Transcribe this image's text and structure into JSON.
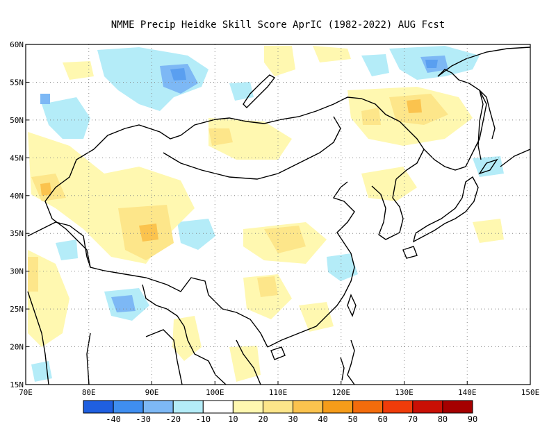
{
  "title": "NMME Precip Heidke Skill Score AprIC (1982-2022) AUG Fcst",
  "map": {
    "lon_range": [
      70,
      150
    ],
    "lat_range": [
      15,
      60
    ],
    "x_ticks": [
      "70E",
      "80E",
      "90E",
      "100E",
      "110E",
      "120E",
      "130E",
      "140E",
      "150E"
    ],
    "y_ticks": [
      "60N",
      "55N",
      "50N",
      "45N",
      "40N",
      "35N",
      "30N",
      "25N",
      "20N",
      "15N"
    ],
    "gridlines": "dotted"
  },
  "colorbar": {
    "labels": [
      "-40",
      "-30",
      "-20",
      "-10",
      "10",
      "20",
      "30",
      "40",
      "50",
      "60",
      "70",
      "80",
      "90"
    ],
    "colors": [
      "#1f5fe0",
      "#3f8ef0",
      "#7db8f5",
      "#b4ecf8",
      "#ffffff",
      "#fff8b0",
      "#fde68a",
      "#fbc34e",
      "#f59c1a",
      "#f36c0c",
      "#ef3c0a",
      "#c91005",
      "#a50000"
    ]
  },
  "shading": {
    "blue_light": "#b4ecf8",
    "blue_mid": "#7db8f5",
    "blue_dark": "#3f8ef0",
    "yellow_light": "#fff8b0",
    "yellow_mid": "#fde68a"
  }
}
